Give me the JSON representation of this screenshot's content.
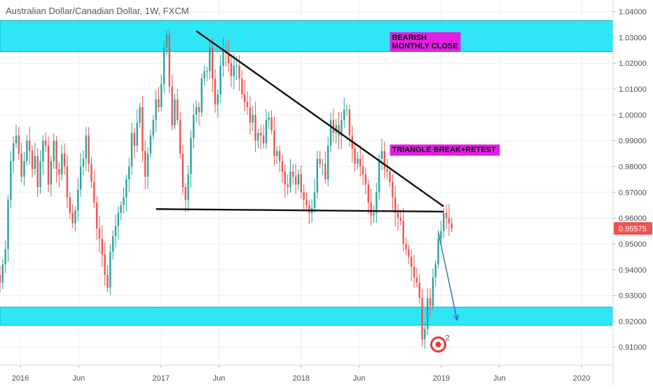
{
  "header": {
    "title": "Australian Dollar/Canadian Dollar, 1W, FXCM"
  },
  "colors": {
    "up": "#26a69a",
    "down": "#ef5350",
    "zone": "#2ee6f6",
    "zone_border": "#1aa7c0",
    "label_bg": "#e31fe3",
    "current_price_bg": "#ef5350",
    "arrow": "#3366cc",
    "grid": "#eef0f3"
  },
  "icons": {
    "logo": "red-circle-logo-icon"
  },
  "chart_data": {
    "type": "candlestick",
    "title": "Australian Dollar/Canadian Dollar, 1W, FXCM",
    "ylim": [
      0.903,
      1.0445
    ],
    "xlim": [
      "2015-11-09",
      "2020-03-23"
    ],
    "y_ticks": [
      "1.04000",
      "1.03000",
      "1.02000",
      "1.01000",
      "1.00000",
      "0.99000",
      "0.98000",
      "0.97000",
      "0.96000",
      "0.95000",
      "0.94000",
      "0.93000",
      "0.92000",
      "0.91000"
    ],
    "x_ticks": [
      {
        "label": "2016",
        "date": "2016-01-01"
      },
      {
        "label": "Jun",
        "date": "2016-06-01"
      },
      {
        "label": "2017",
        "date": "2017-01-01"
      },
      {
        "label": "Jun",
        "date": "2017-06-01"
      },
      {
        "label": "2018",
        "date": "2018-01-01"
      },
      {
        "label": "Jun",
        "date": "2018-06-01"
      },
      {
        "label": "2019",
        "date": "2019-01-01"
      },
      {
        "label": "Jun",
        "date": "2019-06-01"
      },
      {
        "label": "2020",
        "date": "2020-01-01"
      }
    ],
    "current_price": "0.95575",
    "series": [
      {
        "start": "2015-11-09",
        "interval_days": 7,
        "closes": [
          0.935,
          0.942,
          0.948,
          0.967,
          0.982,
          0.989,
          0.992,
          0.985,
          0.976,
          0.982,
          0.99,
          0.986,
          0.979,
          0.984,
          0.972,
          0.982,
          0.99,
          0.988,
          0.973,
          0.982,
          0.99,
          0.979,
          0.977,
          0.985,
          0.98,
          0.968,
          0.962,
          0.958,
          0.963,
          0.971,
          0.98,
          0.983,
          0.992,
          0.981,
          0.974,
          0.966,
          0.956,
          0.952,
          0.946,
          0.938,
          0.933,
          0.947,
          0.953,
          0.957,
          0.962,
          0.965,
          0.968,
          0.975,
          0.98,
          0.993,
          0.988,
          0.997,
          1.003,
          0.986,
          0.976,
          0.985,
          0.992,
          0.998,
          1.006,
          1.003,
          1.012,
          1.026,
          1.031,
          1.011,
          0.996,
          1.006,
          0.998,
          0.985,
          0.972,
          0.967,
          0.977,
          0.991,
          1.0,
          1.003,
          1.001,
          1.014,
          1.017,
          1.017,
          1.026,
          1.014,
          1.004,
          1.008,
          1.019,
          1.025,
          1.024,
          1.02,
          1.015,
          1.019,
          1.019,
          1.014,
          1.008,
          1.005,
          1.003,
          0.997,
          1.0,
          0.99,
          0.993,
          0.992,
          0.989,
          0.998,
          0.999,
          0.994,
          0.984,
          0.986,
          0.982,
          0.978,
          0.973,
          0.972,
          0.978,
          0.976,
          0.973,
          0.977,
          0.97,
          0.967,
          0.965,
          0.962,
          0.964,
          0.97,
          0.983,
          0.981,
          0.981,
          0.975,
          0.988,
          0.998,
          0.993,
          0.996,
          0.992,
          0.998,
          1.002,
          1.002,
          0.992,
          0.987,
          0.981,
          0.983,
          0.98,
          0.977,
          0.973,
          0.966,
          0.961,
          0.962,
          0.97,
          0.983,
          0.986,
          0.979,
          0.978,
          0.974,
          0.968,
          0.962,
          0.96,
          0.959,
          0.95,
          0.948,
          0.945,
          0.941,
          0.937,
          0.935,
          0.929,
          0.913,
          0.917,
          0.929,
          0.926,
          0.937,
          0.942,
          0.952,
          0.955,
          0.962,
          0.96,
          0.958,
          0.956
        ]
      }
    ],
    "zones": [
      {
        "from": 1.0245,
        "to": 1.0365
      },
      {
        "from": 0.9185,
        "to": 0.9255
      }
    ],
    "lines": [
      {
        "name": "triangle-upper-trendline",
        "points": [
          [
            "2017-04-03",
            1.0325
          ],
          [
            "2019-01-07",
            0.9645
          ]
        ]
      },
      {
        "name": "triangle-base-line",
        "points": [
          [
            "2016-12-19",
            0.9635
          ],
          [
            "2019-01-07",
            0.9625
          ]
        ]
      }
    ],
    "arrow": {
      "from": [
        "2018-12-24",
        0.9545
      ],
      "to": [
        "2019-02-11",
        0.9205
      ]
    },
    "annotations": [
      {
        "text": "BEARISH\nMONTHLY CLOSE",
        "anchor": [
          "2018-08-20",
          1.032
        ],
        "corner": "top-left"
      },
      {
        "text": "TRIANGLE BREAK+RETEST",
        "anchor": [
          "2018-08-20",
          0.9885
        ],
        "corner": "top-left"
      }
    ],
    "logo_position": [
      "2018-12-24",
      0.911
    ]
  }
}
